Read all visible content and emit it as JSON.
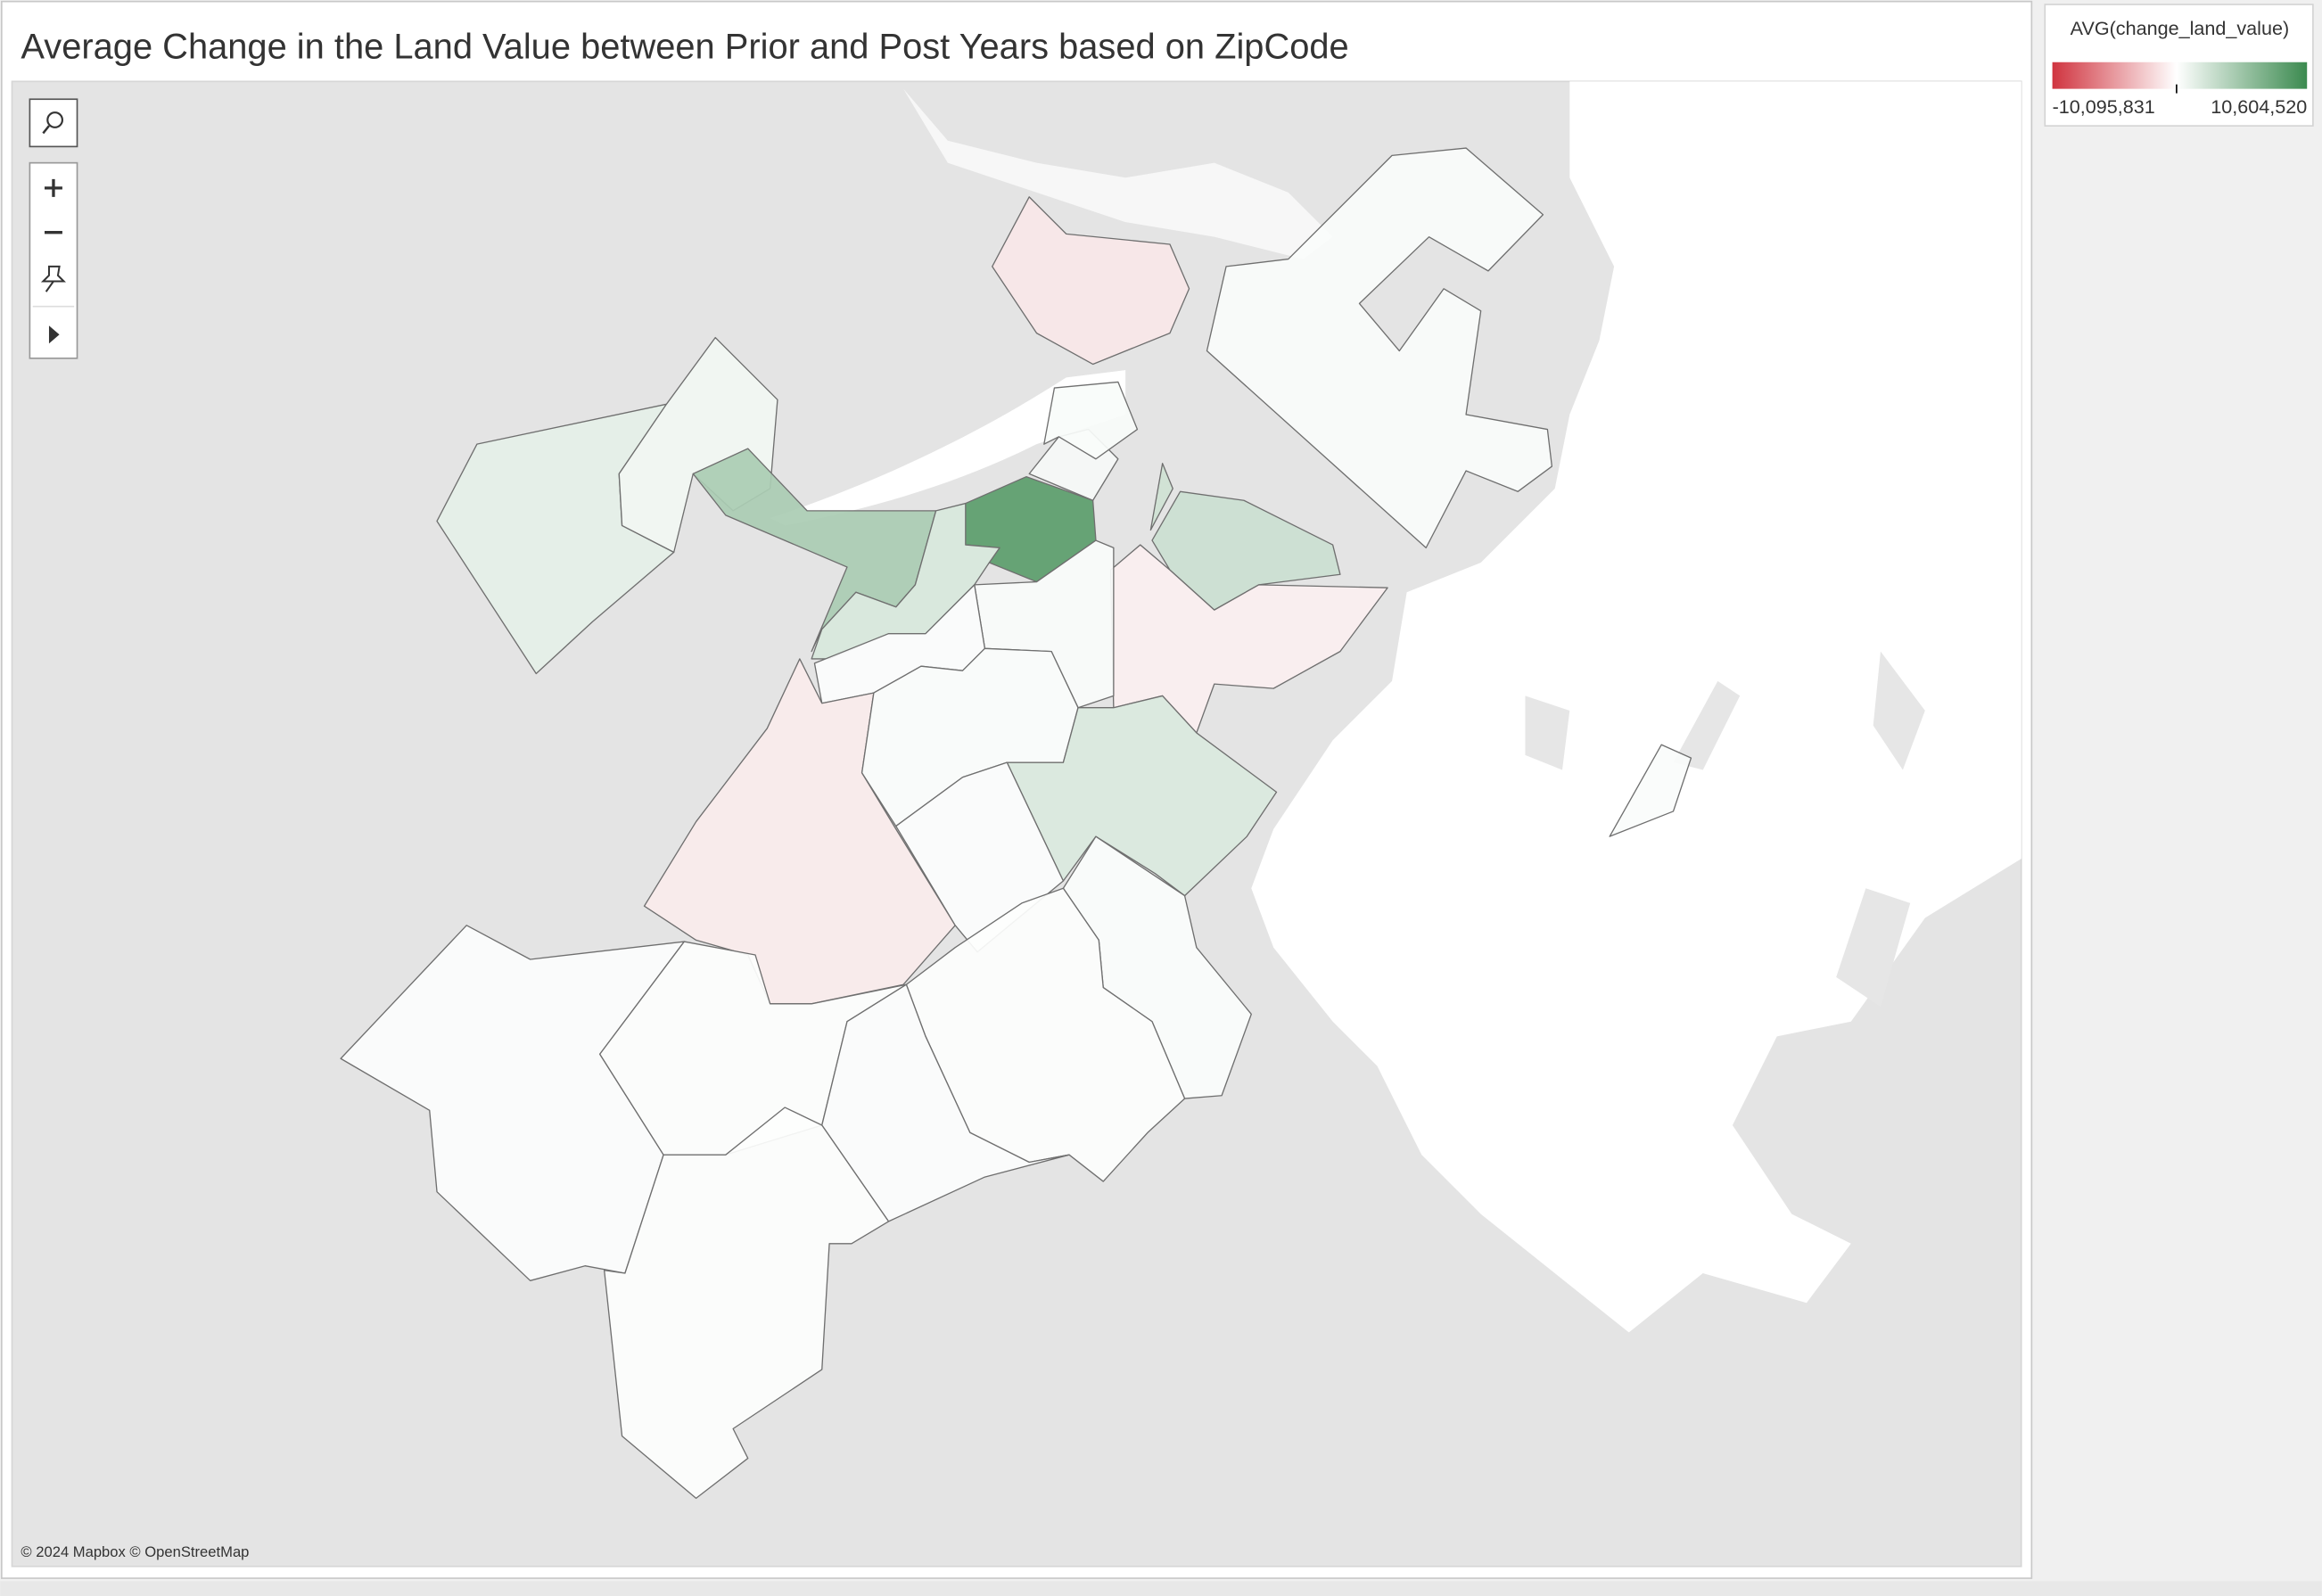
{
  "title": "Average Change in the Land Value between Prior and Post Years based on ZipCode",
  "legend": {
    "title": "AVG(change_land_value)",
    "min": {
      "value": -10095831,
      "label": "-10,095,831"
    },
    "max": {
      "value": 10604520,
      "label": "10,604,520"
    },
    "colors": {
      "negative": "#d0343f",
      "neutral": "#ffffff",
      "positive": "#3b8a4f"
    }
  },
  "map": {
    "region_values": [
      -1200000,
      250000,
      1400000,
      700000,
      4600000,
      8900000,
      2100000,
      500000,
      300000,
      2600000,
      2800000,
      -800000,
      250000,
      150000,
      -1000000,
      200000,
      2000000,
      150000,
      200000,
      100000,
      150000,
      100000,
      150000,
      100000,
      250000
    ]
  },
  "attribution": "© 2024 Mapbox © OpenStreetMap"
}
